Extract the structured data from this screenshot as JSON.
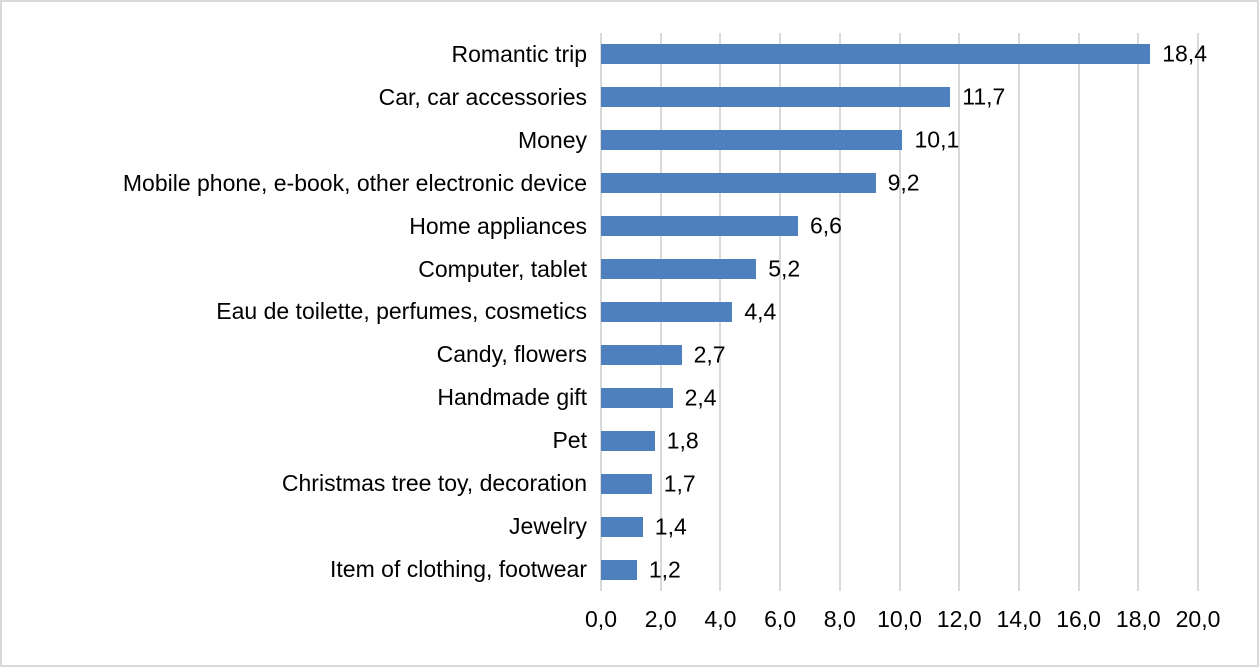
{
  "chart_data": {
    "type": "bar",
    "orientation": "horizontal",
    "title": "",
    "xlabel": "",
    "ylabel": "",
    "categories": [
      "Romantic trip",
      "Car, car accessories",
      "Money",
      "Mobile phone, e-book, other electronic device",
      "Home appliances",
      "Computer, tablet",
      "Eau de toilette, perfumes, cosmetics",
      "Candy, flowers",
      "Handmade gift",
      "Pet",
      "Christmas tree toy, decoration",
      "Jewelry",
      "Item of clothing, footwear"
    ],
    "values": [
      18.4,
      11.7,
      10.1,
      9.2,
      6.6,
      5.2,
      4.4,
      2.7,
      2.4,
      1.8,
      1.7,
      1.4,
      1.2
    ],
    "value_labels": [
      "18,4",
      "11,7",
      "10,1",
      "9,2",
      "6,6",
      "5,2",
      "4,4",
      "2,7",
      "2,4",
      "1,8",
      "1,7",
      "1,4",
      "1,2"
    ],
    "xlim": [
      0,
      20
    ],
    "x_ticks": [
      0,
      2,
      4,
      6,
      8,
      10,
      12,
      14,
      16,
      18,
      20
    ],
    "x_tick_labels": [
      "0,0",
      "2,0",
      "4,0",
      "6,0",
      "8,0",
      "10,0",
      "12,0",
      "14,0",
      "16,0",
      "18,0",
      "20,0"
    ],
    "grid": true,
    "legend": false,
    "decimal_separator": ",",
    "colors": {
      "bar": "#4E80BD",
      "gridline": "#D9D9D9",
      "text": "#000000",
      "frame_border": "#D9D9D9",
      "background": "#FFFFFF"
    }
  }
}
